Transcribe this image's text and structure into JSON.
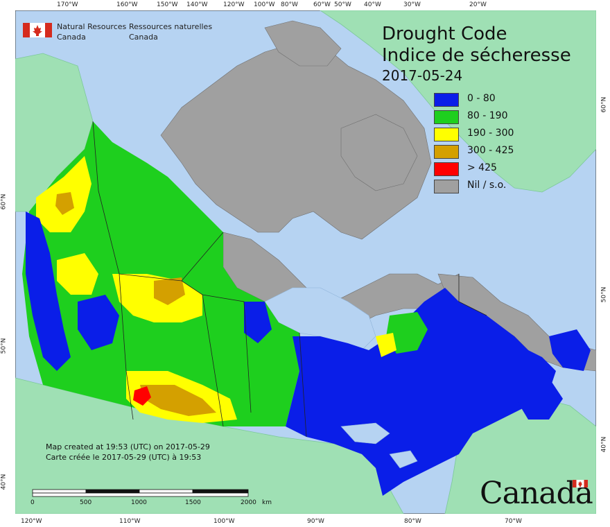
{
  "org": {
    "en_line1": "Natural Resources",
    "en_line2": "Canada",
    "fr_line1": "Ressources naturelles",
    "fr_line2": "Canada"
  },
  "title": {
    "en": "Drought Code",
    "fr": "Indice de sécheresse",
    "date": "2017-05-24"
  },
  "legend": [
    {
      "label": "0 - 80",
      "color": "#0a1ee8"
    },
    {
      "label": "80 - 190",
      "color": "#1ecf1e"
    },
    {
      "label": "190 - 300",
      "color": "#ffff00"
    },
    {
      "label": "300 - 425",
      "color": "#d4a000"
    },
    {
      "label": "> 425",
      "color": "#ff0000"
    },
    {
      "label": "Nil / s.o.",
      "color": "#a0a0a0"
    }
  ],
  "credit": {
    "en": "Map created at 19:53 (UTC) on 2017-05-29",
    "fr": "Carte créée le 2017-05-29 (UTC) à 19:53"
  },
  "scale_bar": {
    "ticks": [
      "0",
      "500",
      "1000",
      "1500",
      "2000"
    ],
    "unit": "km"
  },
  "top_longitudes": [
    "170°W",
    "160°W",
    "150°W",
    "140°W",
    "120°W",
    "100°W",
    "80°W",
    "60°W",
    "50°W",
    "40°W",
    "30°W",
    "20°W"
  ],
  "bottom_longitudes": [
    "120°W",
    "110°W",
    "100°W",
    "90°W",
    "80°W",
    "70°W"
  ],
  "left_latitudes": [
    "60°N",
    "50°N",
    "40°N"
  ],
  "right_latitudes": [
    "60°N",
    "50°N",
    "40°N"
  ],
  "wordmark": "Canada",
  "colors": {
    "ocean": "#b6d3f2",
    "foreign_land": "#9fe0b4",
    "nil_land": "#a0a0a0",
    "flag_red": "#d52b1e"
  }
}
